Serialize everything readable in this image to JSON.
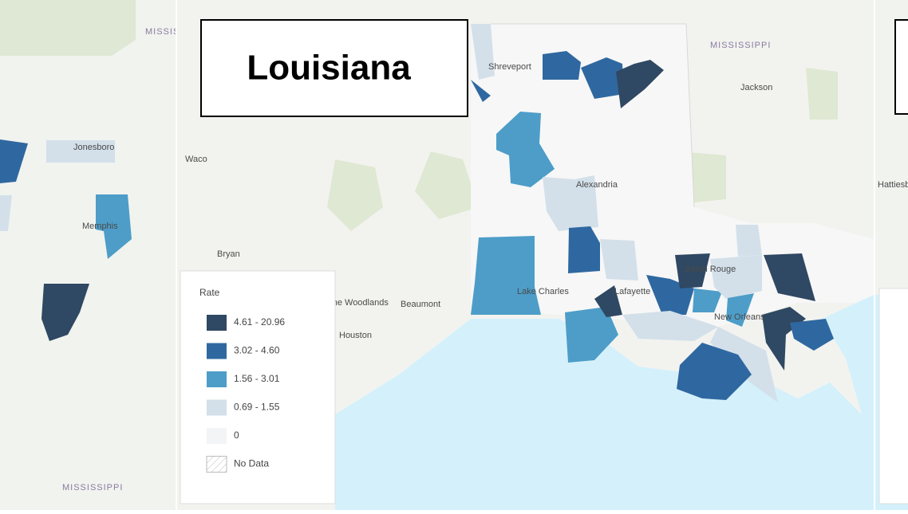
{
  "title": "Louisiana",
  "legend": {
    "title": "Rate",
    "items": [
      {
        "label": "4.61 - 20.96",
        "color": "#2f4863"
      },
      {
        "label": "3.02 - 4.60",
        "color": "#2f68a0"
      },
      {
        "label": "1.56 - 3.01",
        "color": "#4d9dc8"
      },
      {
        "label": "0.69 - 1.55",
        "color": "#d3e0ea"
      },
      {
        "label": "0",
        "color": "#f3f4f6"
      },
      {
        "label": "No Data",
        "color": "#ffffff"
      }
    ]
  },
  "place_labels": [
    "Shreveport",
    "Jackson",
    "Waco",
    "Bryan",
    "Beaumont",
    "Houston",
    "Lake Charles",
    "Lafayette",
    "Baton Rouge",
    "New Orleans",
    "Alexandria",
    "The Woodlands",
    "Jonesboro",
    "Memphis",
    "MISSISSIPPI",
    "MISSISSIPPI",
    "MISSISSIPPI",
    "Hattiesburg"
  ]
}
